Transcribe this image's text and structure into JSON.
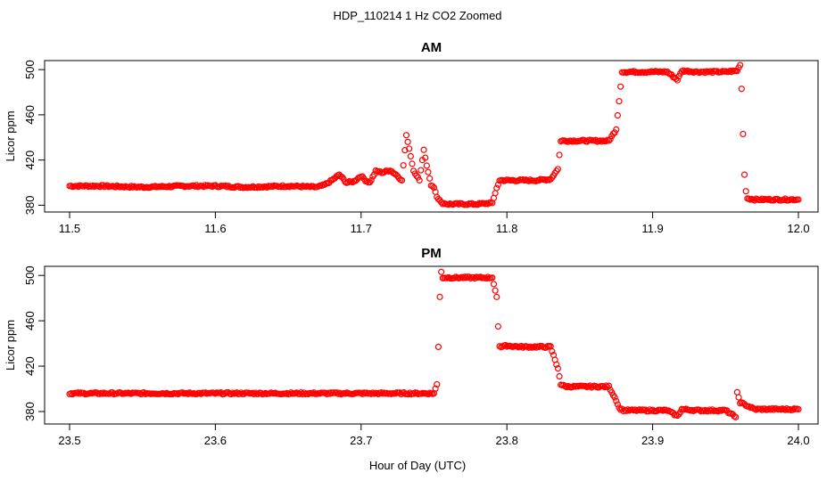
{
  "figure": {
    "title": "HDP_110214  1 Hz CO2 Zoomed",
    "xlabel": "Hour of Day (UTC)"
  },
  "chart_data": [
    {
      "type": "scatter",
      "title": "AM",
      "xlabel": "Hour of Day (UTC)",
      "ylabel": "Licor ppm",
      "xlim": [
        11.5,
        12.0
      ],
      "ylim": [
        374,
        508
      ],
      "xticks": [
        "11.5",
        "11.6",
        "11.7",
        "11.8",
        "11.9",
        "12.0"
      ],
      "yticks": [
        "380",
        "420",
        "460",
        "500"
      ],
      "grid": false,
      "marker": "open-circle",
      "color": "#ff0000",
      "series": [
        {
          "x": [
            11.5,
            11.52,
            11.55,
            11.58,
            11.6,
            11.62,
            11.65,
            11.67,
            11.675,
            11.68,
            11.685,
            11.69,
            11.695,
            11.7,
            11.703,
            11.706,
            11.71,
            11.715,
            11.72,
            11.725,
            11.728,
            11.731,
            11.733,
            11.736,
            11.74,
            11.743,
            11.745,
            11.748,
            11.75,
            11.752,
            11.755,
            11.76,
            11.77,
            11.78,
            11.79,
            11.793,
            11.795,
            11.8,
            11.81,
            11.82,
            11.83,
            11.835,
            11.837,
            11.84,
            11.85,
            11.86,
            11.87,
            11.875,
            11.877,
            11.879,
            11.88,
            11.89,
            11.9,
            11.91,
            11.917,
            11.92,
            11.93,
            11.94,
            11.95,
            11.958,
            11.96,
            11.961,
            11.962,
            11.963,
            11.964,
            11.965,
            11.97,
            11.98,
            11.99,
            12.0
          ],
          "y": [
            397,
            397,
            396,
            397,
            397,
            396,
            397,
            396,
            398,
            402,
            407,
            400,
            401,
            406,
            402,
            400,
            410,
            409,
            411,
            406,
            402,
            442,
            430,
            410,
            402,
            429,
            415,
            398,
            396,
            388,
            382,
            381,
            381,
            381,
            382,
            395,
            402,
            402,
            402,
            402,
            403,
            412,
            437,
            437,
            437,
            437,
            437,
            447,
            472,
            498,
            498,
            498,
            498,
            498,
            491,
            499,
            498,
            498,
            498,
            499,
            504,
            483,
            443,
            407,
            393,
            386,
            385,
            385,
            385,
            385
          ]
        }
      ]
    },
    {
      "type": "scatter",
      "title": "PM",
      "xlabel": "Hour of Day (UTC)",
      "ylabel": "Licor ppm",
      "xlim": [
        23.5,
        24.0
      ],
      "ylim": [
        369,
        508
      ],
      "xticks": [
        "23.5",
        "23.6",
        "23.7",
        "23.8",
        "23.9",
        "24.0"
      ],
      "yticks": [
        "380",
        "420",
        "460",
        "500"
      ],
      "grid": false,
      "marker": "open-circle",
      "color": "#ff0000",
      "series": [
        {
          "x": [
            23.5,
            23.55,
            23.6,
            23.65,
            23.7,
            23.75,
            23.752,
            23.753,
            23.754,
            23.755,
            23.756,
            23.76,
            23.77,
            23.78,
            23.79,
            23.793,
            23.794,
            23.795,
            23.796,
            23.8,
            23.81,
            23.82,
            23.83,
            23.835,
            23.837,
            23.84,
            23.85,
            23.86,
            23.87,
            23.875,
            23.877,
            23.88,
            23.89,
            23.9,
            23.91,
            23.917,
            23.92,
            23.93,
            23.94,
            23.95,
            23.957,
            23.958,
            23.96,
            23.97,
            23.98,
            23.99,
            24.0
          ],
          "y": [
            396,
            396,
            396,
            396,
            396,
            396,
            404,
            437,
            481,
            503,
            498,
            498,
            498,
            498,
            498,
            481,
            455,
            438,
            437,
            438,
            437,
            437,
            437,
            418,
            404,
            402,
            402,
            402,
            402,
            390,
            383,
            381,
            381,
            381,
            381,
            376,
            382,
            381,
            381,
            381,
            375,
            397,
            388,
            382,
            382,
            382,
            382
          ]
        }
      ]
    }
  ]
}
